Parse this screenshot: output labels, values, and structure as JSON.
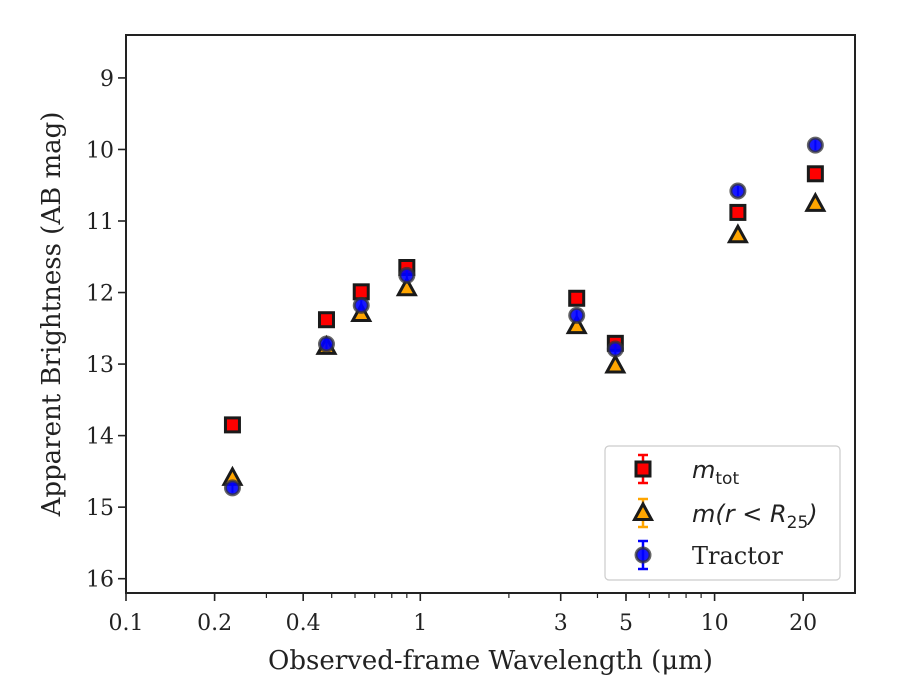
{
  "chart_data": {
    "type": "scatter",
    "xlabel": "Observed-frame Wavelength (μm)",
    "ylabel": "Apparent Brightness (AB mag)",
    "x_scale": "log",
    "xlim": [
      0.1,
      30
    ],
    "ylim": [
      16.2,
      8.4
    ],
    "y_inverted": true,
    "x_ticks": [
      {
        "value": 0.1,
        "label": "0.1"
      },
      {
        "value": 0.2,
        "label": "0.2"
      },
      {
        "value": 0.4,
        "label": "0.4"
      },
      {
        "value": 1,
        "label": "1"
      },
      {
        "value": 3,
        "label": "3"
      },
      {
        "value": 5,
        "label": "5"
      },
      {
        "value": 10,
        "label": "10"
      },
      {
        "value": 20,
        "label": "20"
      }
    ],
    "y_ticks": [
      {
        "value": 9,
        "label": "9"
      },
      {
        "value": 10,
        "label": "10"
      },
      {
        "value": 11,
        "label": "11"
      },
      {
        "value": 12,
        "label": "12"
      },
      {
        "value": 13,
        "label": "13"
      },
      {
        "value": 14,
        "label": "14"
      },
      {
        "value": 15,
        "label": "15"
      },
      {
        "value": 16,
        "label": "16"
      }
    ],
    "grid": false,
    "legend_position": "bottom-right",
    "series": [
      {
        "name": "m_tot",
        "legend_main": "m",
        "legend_sub": "tot",
        "marker": "square",
        "fill": "#ff0000",
        "edge": "#1a1a1a",
        "errbar": "#ff0000",
        "x": [
          0.23,
          0.48,
          0.63,
          0.9,
          3.4,
          4.6,
          12.0,
          22.0
        ],
        "y": [
          13.85,
          12.38,
          11.99,
          11.65,
          12.08,
          12.71,
          10.88,
          10.34
        ]
      },
      {
        "name": "m(r < R25)",
        "legend_main": "m(r < R",
        "legend_sub": "25",
        "legend_end": ")",
        "marker": "triangle",
        "fill": "#ffa500",
        "edge": "#1a1a1a",
        "errbar": "#ffa500",
        "x": [
          0.23,
          0.48,
          0.63,
          0.9,
          3.4,
          4.6,
          12.0,
          22.0
        ],
        "y": [
          14.59,
          12.76,
          12.3,
          11.94,
          12.47,
          13.02,
          11.2,
          10.76
        ]
      },
      {
        "name": "Tractor",
        "marker": "circle",
        "fill": "#0000ff",
        "edge": "#333333",
        "errbar": "#0000ff",
        "x": [
          0.23,
          0.48,
          0.63,
          0.9,
          3.4,
          4.6,
          12.0,
          22.0
        ],
        "y": [
          14.73,
          12.72,
          12.18,
          11.76,
          12.32,
          12.79,
          10.58,
          9.94
        ]
      }
    ]
  }
}
